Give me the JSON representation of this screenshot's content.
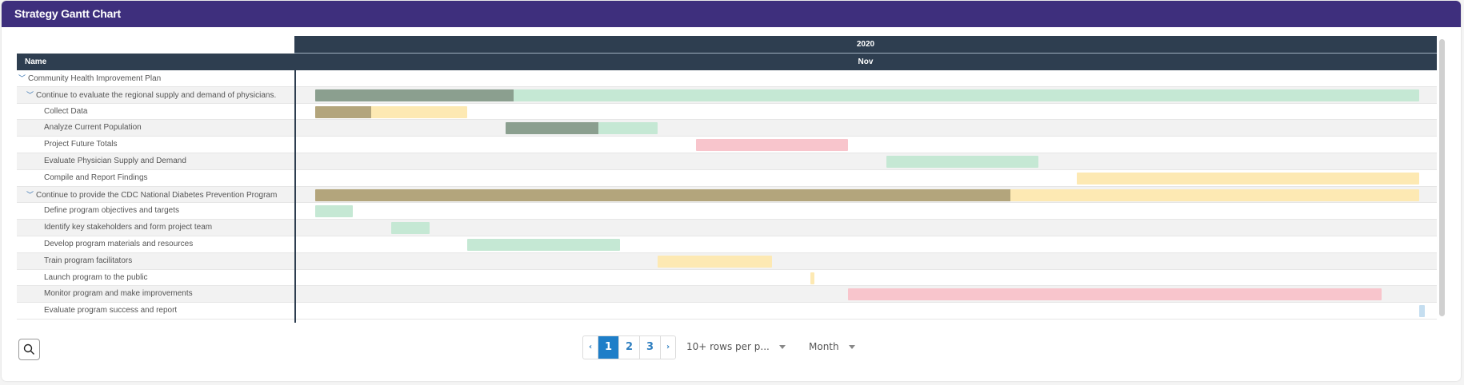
{
  "title": "Strategy Gantt Chart",
  "colors": {
    "green": "#c5e8d4",
    "green_progress": "#8b9f8f",
    "yellow": "#fde9b3",
    "tan_progress": "#b3a57c",
    "pink": "#f8c5cc",
    "blue": "#c5def0"
  },
  "chart_data": {
    "type": "gantt",
    "year_label": "2020",
    "month_label": "Nov",
    "name_header": "Name",
    "days_in_view": 30,
    "tasks": [
      {
        "name": "Community Health Improvement Plan",
        "level": 0,
        "collapsible": true
      },
      {
        "name": "Continue to evaluate the regional supply and demand of physicians.",
        "level": 1,
        "collapsible": true,
        "start": 0,
        "end": 29,
        "progress": 0.18,
        "color": "green",
        "progress_color": "green_progress"
      },
      {
        "name": "Collect Data",
        "level": 2,
        "start": 0,
        "end": 4,
        "progress": 0.37,
        "color": "yellow",
        "progress_color": "tan_progress"
      },
      {
        "name": "Analyze Current Population",
        "level": 2,
        "start": 5,
        "end": 9,
        "progress": 0.61,
        "color": "green",
        "progress_color": "green_progress"
      },
      {
        "name": "Project Future Totals",
        "level": 2,
        "start": 10,
        "end": 14,
        "progress": 0,
        "color": "pink"
      },
      {
        "name": "Evaluate Physician Supply and Demand",
        "level": 2,
        "start": 15,
        "end": 19,
        "progress": 0,
        "color": "green"
      },
      {
        "name": "Compile and Report Findings",
        "level": 2,
        "start": 20,
        "end": 29,
        "progress": 0,
        "color": "yellow"
      },
      {
        "name": "Continue to provide the CDC National Diabetes Prevention Program",
        "level": 1,
        "collapsible": true,
        "start": 0,
        "end": 29,
        "progress": 0.63,
        "color": "yellow",
        "progress_color": "tan_progress"
      },
      {
        "name": "Define program objectives and targets",
        "level": 2,
        "start": 0,
        "end": 1,
        "progress": 0,
        "color": "green"
      },
      {
        "name": "Identify key stakeholders and form project team",
        "level": 2,
        "start": 2,
        "end": 3,
        "progress": 0,
        "color": "green"
      },
      {
        "name": "Develop program materials and resources",
        "level": 2,
        "start": 4,
        "end": 8,
        "progress": 0,
        "color": "green"
      },
      {
        "name": "Train program facilitators",
        "level": 2,
        "start": 9,
        "end": 12,
        "progress": 0,
        "color": "yellow"
      },
      {
        "name": "Launch program to the public",
        "level": 2,
        "start": 13,
        "end": 13.12,
        "progress": 0,
        "color": "yellow"
      },
      {
        "name": "Monitor program and make improvements",
        "level": 2,
        "start": 14,
        "end": 28,
        "progress": 0,
        "color": "pink"
      },
      {
        "name": "Evaluate program success and report",
        "level": 2,
        "start": 29,
        "end": 29.15,
        "progress": 0,
        "color": "blue"
      }
    ]
  },
  "pagination": {
    "prev": "‹",
    "pages": [
      "1",
      "2",
      "3"
    ],
    "active": "1",
    "next": "›"
  },
  "rows_per_page": "10+ rows per p...",
  "zoom_level": "Month",
  "chevron": "﹀"
}
